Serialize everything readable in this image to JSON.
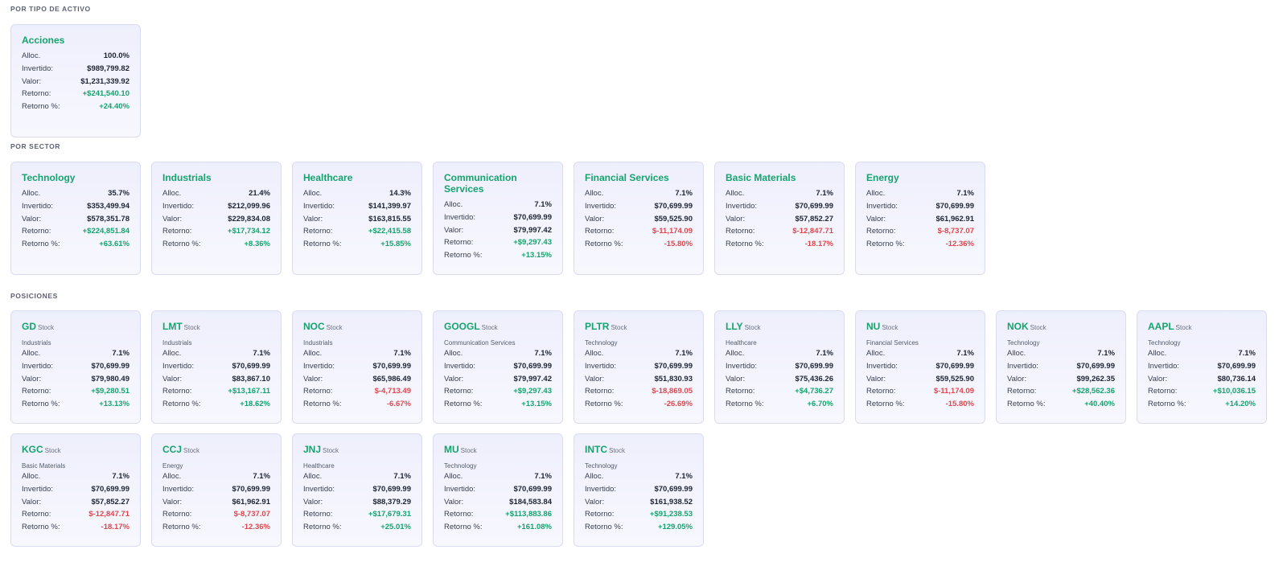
{
  "labels": {
    "alloc": "Alloc.",
    "invertido": "Invertido:",
    "valor": "Valor:",
    "retorno": "Retorno:",
    "retorno_pct": "Retorno %:"
  },
  "colors": {
    "accent": "#16a36d",
    "negative": "#e0474c",
    "card_border": "#d9dcf1"
  },
  "sections": {
    "asset_type": {
      "title": "POR TIPO DE ACTIVO",
      "cards": [
        {
          "name": "Acciones",
          "alloc": "100.0%",
          "invertido": "$989,799.82",
          "valor": "$1,231,339.92",
          "retorno": "+$241,540.10",
          "retorno_pct": "+24.40%",
          "positive": true
        }
      ]
    },
    "sector": {
      "title": "POR SECTOR",
      "cards": [
        {
          "name": "Technology",
          "alloc": "35.7%",
          "invertido": "$353,499.94",
          "valor": "$578,351.78",
          "retorno": "+$224,851.84",
          "retorno_pct": "+63.61%",
          "positive": true
        },
        {
          "name": "Industrials",
          "alloc": "21.4%",
          "invertido": "$212,099.96",
          "valor": "$229,834.08",
          "retorno": "+$17,734.12",
          "retorno_pct": "+8.36%",
          "positive": true
        },
        {
          "name": "Healthcare",
          "alloc": "14.3%",
          "invertido": "$141,399.97",
          "valor": "$163,815.55",
          "retorno": "+$22,415.58",
          "retorno_pct": "+15.85%",
          "positive": true
        },
        {
          "name": "Communication Services",
          "alloc": "7.1%",
          "invertido": "$70,699.99",
          "valor": "$79,997.42",
          "retorno": "+$9,297.43",
          "retorno_pct": "+13.15%",
          "positive": true
        },
        {
          "name": "Financial Services",
          "alloc": "7.1%",
          "invertido": "$70,699.99",
          "valor": "$59,525.90",
          "retorno": "$-11,174.09",
          "retorno_pct": "-15.80%",
          "positive": false
        },
        {
          "name": "Basic Materials",
          "alloc": "7.1%",
          "invertido": "$70,699.99",
          "valor": "$57,852.27",
          "retorno": "$-12,847.71",
          "retorno_pct": "-18.17%",
          "positive": false
        },
        {
          "name": "Energy",
          "alloc": "7.1%",
          "invertido": "$70,699.99",
          "valor": "$61,962.91",
          "retorno": "$-8,737.07",
          "retorno_pct": "-12.36%",
          "positive": false
        }
      ]
    },
    "positions": {
      "title": "POSICIONES",
      "cards": [
        {
          "ticker": "GD",
          "type": "Stock",
          "sector": "Industrials",
          "alloc": "7.1%",
          "invertido": "$70,699.99",
          "valor": "$79,980.49",
          "retorno": "+$9,280.51",
          "retorno_pct": "+13.13%",
          "positive": true
        },
        {
          "ticker": "LMT",
          "type": "Stock",
          "sector": "Industrials",
          "alloc": "7.1%",
          "invertido": "$70,699.99",
          "valor": "$83,867.10",
          "retorno": "+$13,167.11",
          "retorno_pct": "+18.62%",
          "positive": true
        },
        {
          "ticker": "NOC",
          "type": "Stock",
          "sector": "Industrials",
          "alloc": "7.1%",
          "invertido": "$70,699.99",
          "valor": "$65,986.49",
          "retorno": "$-4,713.49",
          "retorno_pct": "-6.67%",
          "positive": false
        },
        {
          "ticker": "GOOGL",
          "type": "Stock",
          "sector": "Communication Services",
          "alloc": "7.1%",
          "invertido": "$70,699.99",
          "valor": "$79,997.42",
          "retorno": "+$9,297.43",
          "retorno_pct": "+13.15%",
          "positive": true
        },
        {
          "ticker": "PLTR",
          "type": "Stock",
          "sector": "Technology",
          "alloc": "7.1%",
          "invertido": "$70,699.99",
          "valor": "$51,830.93",
          "retorno": "$-18,869.05",
          "retorno_pct": "-26.69%",
          "positive": false
        },
        {
          "ticker": "LLY",
          "type": "Stock",
          "sector": "Healthcare",
          "alloc": "7.1%",
          "invertido": "$70,699.99",
          "valor": "$75,436.26",
          "retorno": "+$4,736.27",
          "retorno_pct": "+6.70%",
          "positive": true
        },
        {
          "ticker": "NU",
          "type": "Stock",
          "sector": "Financial Services",
          "alloc": "7.1%",
          "invertido": "$70,699.99",
          "valor": "$59,525.90",
          "retorno": "$-11,174.09",
          "retorno_pct": "-15.80%",
          "positive": false
        },
        {
          "ticker": "NOK",
          "type": "Stock",
          "sector": "Technology",
          "alloc": "7.1%",
          "invertido": "$70,699.99",
          "valor": "$99,262.35",
          "retorno": "+$28,562.36",
          "retorno_pct": "+40.40%",
          "positive": true
        },
        {
          "ticker": "AAPL",
          "type": "Stock",
          "sector": "Technology",
          "alloc": "7.1%",
          "invertido": "$70,699.99",
          "valor": "$80,736.14",
          "retorno": "+$10,036.15",
          "retorno_pct": "+14.20%",
          "positive": true
        },
        {
          "ticker": "KGC",
          "type": "Stock",
          "sector": "Basic Materials",
          "alloc": "7.1%",
          "invertido": "$70,699.99",
          "valor": "$57,852.27",
          "retorno": "$-12,847.71",
          "retorno_pct": "-18.17%",
          "positive": false
        },
        {
          "ticker": "CCJ",
          "type": "Stock",
          "sector": "Energy",
          "alloc": "7.1%",
          "invertido": "$70,699.99",
          "valor": "$61,962.91",
          "retorno": "$-8,737.07",
          "retorno_pct": "-12.36%",
          "positive": false
        },
        {
          "ticker": "JNJ",
          "type": "Stock",
          "sector": "Healthcare",
          "alloc": "7.1%",
          "invertido": "$70,699.99",
          "valor": "$88,379.29",
          "retorno": "+$17,679.31",
          "retorno_pct": "+25.01%",
          "positive": true
        },
        {
          "ticker": "MU",
          "type": "Stock",
          "sector": "Technology",
          "alloc": "7.1%",
          "invertido": "$70,699.99",
          "valor": "$184,583.84",
          "retorno": "+$113,883.86",
          "retorno_pct": "+161.08%",
          "positive": true
        },
        {
          "ticker": "INTC",
          "type": "Stock",
          "sector": "Technology",
          "alloc": "7.1%",
          "invertido": "$70,699.99",
          "valor": "$161,938.52",
          "retorno": "+$91,238.53",
          "retorno_pct": "+129.05%",
          "positive": true
        }
      ]
    }
  }
}
